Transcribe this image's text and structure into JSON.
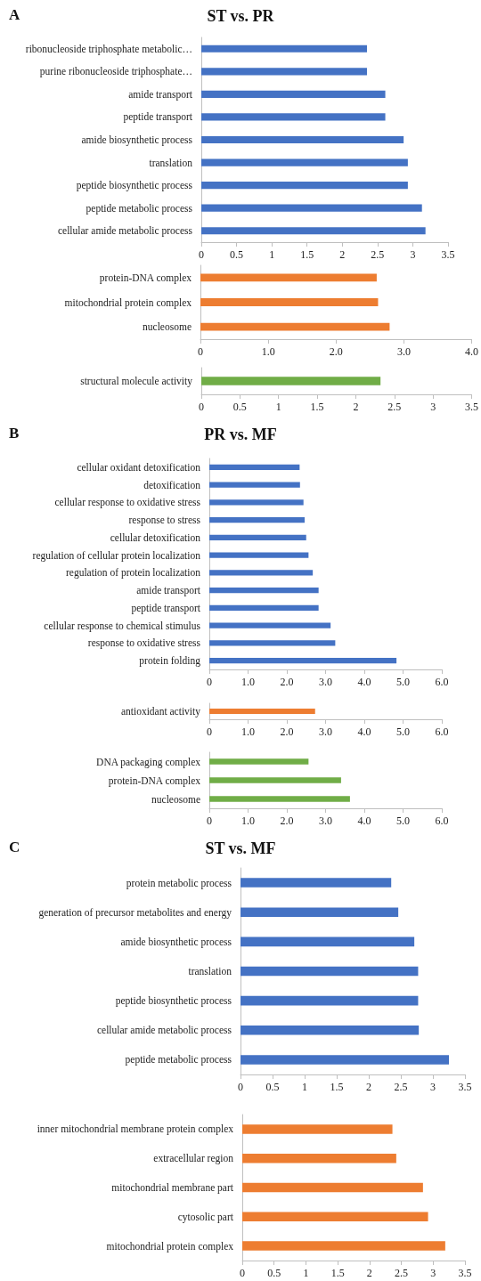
{
  "chart_data": [
    {
      "type": "bar",
      "orientation": "horizontal",
      "title": "ST vs. PR",
      "annotations": [
        "A"
      ],
      "grid": false,
      "color": "#4472c4",
      "categories": [
        "ribonucleoside triphosphate metabolic…",
        "purine ribonucleoside triphosphate…",
        "amide transport",
        "peptide transport",
        "amide biosynthetic process",
        "translation",
        "peptide biosynthetic process",
        "peptide metabolic process",
        "cellular amide metabolic process"
      ],
      "values": [
        2.35,
        2.35,
        2.61,
        2.61,
        2.87,
        2.93,
        2.93,
        3.13,
        3.18
      ],
      "xlim": [
        0,
        3.5
      ],
      "xticks": [
        0,
        0.5,
        1,
        1.5,
        2,
        2.5,
        3,
        3.5
      ]
    },
    {
      "type": "bar",
      "orientation": "horizontal",
      "grid": false,
      "color": "#ed7d31",
      "categories": [
        "protein-DNA complex",
        "mitochondrial protein complex",
        "nucleosome"
      ],
      "values": [
        2.6,
        2.62,
        2.79
      ],
      "xlim": [
        0,
        4
      ],
      "xticks": [
        0,
        {
          "value": 1,
          "label": "1.0"
        },
        {
          "value": 2,
          "label": "2.0"
        },
        {
          "value": 3,
          "label": "3.0"
        },
        {
          "value": 4,
          "label": "4.0"
        }
      ]
    },
    {
      "type": "bar",
      "orientation": "horizontal",
      "grid": false,
      "color": "#70ad47",
      "categories": [
        "structural molecule activity"
      ],
      "values": [
        2.32
      ],
      "xlim": [
        0,
        3.5
      ],
      "xticks": [
        0,
        0.5,
        1,
        1.5,
        2,
        2.5,
        3,
        3.5
      ]
    },
    {
      "type": "bar",
      "orientation": "horizontal",
      "title": "PR vs. MF",
      "annotations": [
        "B"
      ],
      "grid": false,
      "color": "#4472c4",
      "categories": [
        "cellular oxidant detoxification",
        "detoxification",
        "cellular response to oxidative stress",
        "response to stress",
        "cellular detoxification",
        "regulation of cellular protein localization",
        "regulation of protein localization",
        "amide transport",
        "peptide transport",
        "cellular response to chemical stimulus",
        "response to oxidative stress",
        "protein folding"
      ],
      "values": [
        2.33,
        2.34,
        2.43,
        2.46,
        2.5,
        2.56,
        2.67,
        2.82,
        2.82,
        3.13,
        3.25,
        4.83
      ],
      "xlim": [
        0,
        6
      ],
      "xticks": [
        0,
        {
          "value": 1,
          "label": "1.0"
        },
        {
          "value": 2,
          "label": "2.0"
        },
        {
          "value": 3,
          "label": "3.0"
        },
        {
          "value": 4,
          "label": "4.0"
        },
        {
          "value": 5,
          "label": "5.0"
        },
        {
          "value": 6,
          "label": "6.0"
        }
      ]
    },
    {
      "type": "bar",
      "orientation": "horizontal",
      "grid": false,
      "color": "#ed7d31",
      "categories": [
        "antioxidant activity"
      ],
      "values": [
        2.73
      ],
      "xlim": [
        0,
        6
      ],
      "xticks": [
        0,
        {
          "value": 1,
          "label": "1.0"
        },
        {
          "value": 2,
          "label": "2.0"
        },
        {
          "value": 3,
          "label": "3.0"
        },
        {
          "value": 4,
          "label": "4.0"
        },
        {
          "value": 5,
          "label": "5.0"
        },
        {
          "value": 6,
          "label": "6.0"
        }
      ]
    },
    {
      "type": "bar",
      "orientation": "horizontal",
      "grid": false,
      "color": "#70ad47",
      "categories": [
        "DNA packaging complex",
        "protein-DNA complex",
        "nucleosome"
      ],
      "values": [
        2.56,
        3.4,
        3.63
      ],
      "xlim": [
        0,
        6
      ],
      "xticks": [
        0,
        {
          "value": 1,
          "label": "1.0"
        },
        {
          "value": 2,
          "label": "2.0"
        },
        {
          "value": 3,
          "label": "3.0"
        },
        {
          "value": 4,
          "label": "4.0"
        },
        {
          "value": 5,
          "label": "5.0"
        },
        {
          "value": 6,
          "label": "6.0"
        }
      ]
    },
    {
      "type": "bar",
      "orientation": "horizontal",
      "title": "ST vs. MF",
      "annotations": [
        "C"
      ],
      "grid": false,
      "color": "#4472c4",
      "categories": [
        "protein metabolic process",
        "generation of precursor metabolites and energy",
        "amide biosynthetic process",
        "translation",
        "peptide biosynthetic process",
        "cellular amide metabolic process",
        "peptide metabolic process"
      ],
      "values": [
        2.35,
        2.46,
        2.71,
        2.77,
        2.77,
        2.78,
        3.25
      ],
      "xlim": [
        0,
        3.5
      ],
      "xticks": [
        0,
        0.5,
        1,
        1.5,
        2,
        2.5,
        3,
        3.5
      ]
    },
    {
      "type": "bar",
      "orientation": "horizontal",
      "grid": false,
      "color": "#ed7d31",
      "categories": [
        "inner mitochondrial membrane protein complex",
        "extracellular region",
        "mitochondrial membrane part",
        "cytosolic part",
        "mitochondrial protein complex"
      ],
      "values": [
        2.36,
        2.42,
        2.84,
        2.92,
        3.19
      ],
      "xlim": [
        0,
        3.5
      ],
      "xticks": [
        0,
        0.5,
        1,
        1.5,
        2,
        2.5,
        3,
        3.5
      ]
    }
  ]
}
